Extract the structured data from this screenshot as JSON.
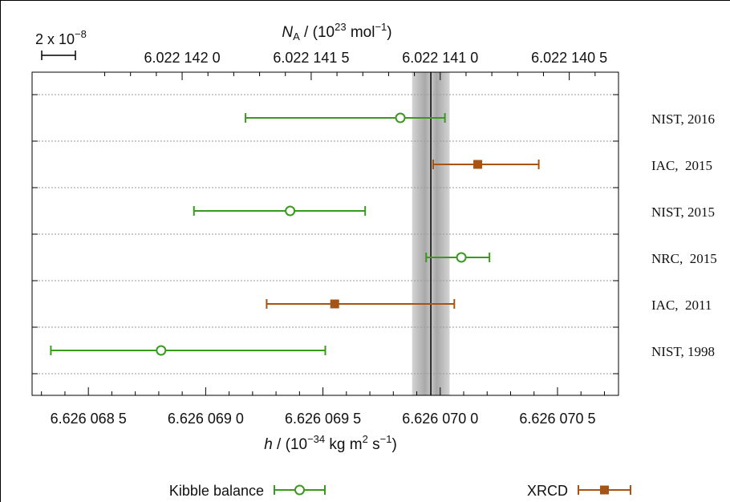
{
  "chart_data": {
    "type": "scatter",
    "subtype": "error-bar comparison",
    "bottom_axis": {
      "label_pre": "h",
      "label_mid": " / (10",
      "label_exp": "−34",
      "label_post1": " kg m",
      "label_exp2": "2",
      "label_post2": " s",
      "label_exp3": "−1",
      "label_post3": ")",
      "ticks": [
        {
          "value": 6.6260685,
          "label": "6.626 068 5"
        },
        {
          "value": 6.626069,
          "label": "6.626 069 0"
        },
        {
          "value": 6.6260695,
          "label": "6.626 069 5"
        },
        {
          "value": 6.62607,
          "label": "6.626 070 0"
        },
        {
          "value": 6.6260705,
          "label": "6.626 070 5"
        }
      ],
      "xlim": [
        6.62606826,
        6.62607076
      ]
    },
    "top_axis": {
      "label_pre": "N",
      "label_sub": "A",
      "label_mid": " / (10",
      "label_exp": "23",
      "label_post1": " mol",
      "label_exp2": "−1",
      "label_post2": ")",
      "ticks": [
        {
          "value": 6.022142,
          "label": "6.022 142 0"
        },
        {
          "value": 6.0221415,
          "label": "6.022 141 5"
        },
        {
          "value": 6.022141,
          "label": "6.022 141 0"
        },
        {
          "value": 6.0221405,
          "label": "6.022 140 5"
        }
      ]
    },
    "scale_bar": {
      "label_pre": "2 x 10",
      "label_exp": "−8"
    },
    "reference": {
      "value": 6.62606996,
      "band_halfwidth": 8e-08
    },
    "series": [
      {
        "name": "Kibble balance",
        "marker": "open-circle",
        "color": "#3a9a1e"
      },
      {
        "name": "XRCD",
        "marker": "filled-square",
        "color": "#a85410"
      }
    ],
    "points": [
      {
        "label": "NIST, 2016",
        "series": 0,
        "value": 6.62606983,
        "low": 6.62606917,
        "high": 6.62607002
      },
      {
        "label": "IAC,  2015",
        "series": 1,
        "value": 6.62607016,
        "low": 6.62606997,
        "high": 6.62607042
      },
      {
        "label": "NIST, 2015",
        "series": 0,
        "value": 6.62606936,
        "low": 6.62606895,
        "high": 6.62606968
      },
      {
        "label": "NRC,  2015",
        "series": 0,
        "value": 6.62607009,
        "low": 6.62606994,
        "high": 6.62607021
      },
      {
        "label": "IAC,  2011",
        "series": 1,
        "value": 6.62606955,
        "low": 6.62606926,
        "high": 6.62607006
      },
      {
        "label": "NIST, 1998",
        "series": 0,
        "value": 6.62606881,
        "low": 6.62606834,
        "high": 6.62606951
      }
    ],
    "grid": "horizontal dashed",
    "legend": "bottom"
  }
}
